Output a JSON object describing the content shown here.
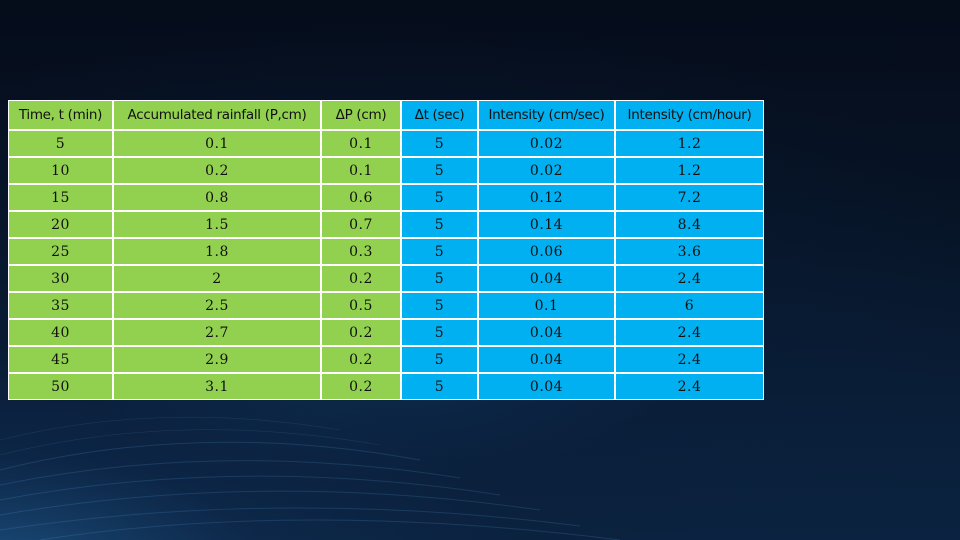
{
  "table": {
    "headers": [
      "Time, t (min)",
      "Accumulated rainfall (P,cm)",
      "ΔP (cm)",
      "Δt (sec)",
      "Intensity (cm/sec)",
      "Intensity (cm/hour)"
    ],
    "rows": [
      [
        "5",
        "0.1",
        "0.1",
        "5",
        "0.02",
        "1.2"
      ],
      [
        "10",
        "0.2",
        "0.1",
        "5",
        "0.02",
        "1.2"
      ],
      [
        "15",
        "0.8",
        "0.6",
        "5",
        "0.12",
        "7.2"
      ],
      [
        "20",
        "1.5",
        "0.7",
        "5",
        "0.14",
        "8.4"
      ],
      [
        "25",
        "1.8",
        "0.3",
        "5",
        "0.06",
        "3.6"
      ],
      [
        "30",
        "2",
        "0.2",
        "5",
        "0.04",
        "2.4"
      ],
      [
        "35",
        "2.5",
        "0.5",
        "5",
        "0.1",
        "6"
      ],
      [
        "40",
        "2.7",
        "0.2",
        "5",
        "0.04",
        "2.4"
      ],
      [
        "45",
        "2.9",
        "0.2",
        "5",
        "0.04",
        "2.4"
      ],
      [
        "50",
        "3.1",
        "0.2",
        "5",
        "0.04",
        "2.4"
      ]
    ]
  },
  "colors": {
    "green_columns": "#92d050",
    "blue_columns": "#00b0f0"
  }
}
